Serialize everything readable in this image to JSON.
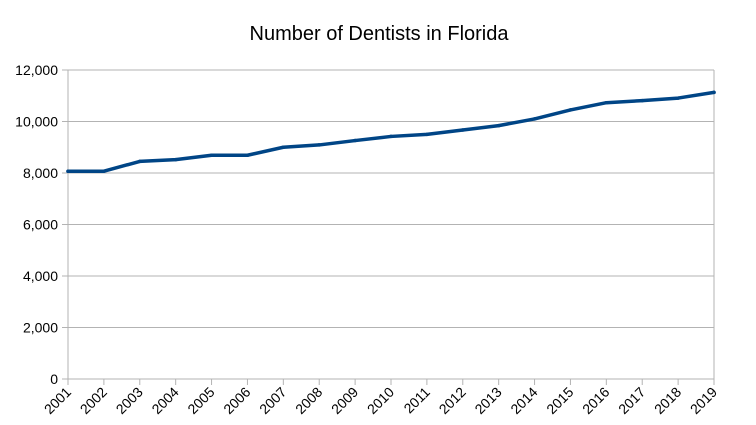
{
  "chart_data": {
    "type": "line",
    "title": "Number of Dentists in Florida",
    "xlabel": "",
    "ylabel": "",
    "categories": [
      "2001",
      "2002",
      "2003",
      "2004",
      "2005",
      "2006",
      "2007",
      "2008",
      "2009",
      "2010",
      "2011",
      "2012",
      "2013",
      "2014",
      "2015",
      "2016",
      "2017",
      "2018",
      "2019"
    ],
    "series": [
      {
        "values": [
          8070,
          8070,
          8450,
          8520,
          8690,
          8690,
          9000,
          9090,
          9260,
          9420,
          9500,
          9670,
          9840,
          10100,
          10450,
          10730,
          10810,
          10910,
          11130
        ]
      }
    ],
    "ylim": [
      0,
      12000
    ],
    "yticks": [
      0,
      2000,
      4000,
      6000,
      8000,
      10000,
      12000
    ],
    "ytick_labels": [
      "0",
      "2,000",
      "4,000",
      "6,000",
      "8,000",
      "10,000",
      "12,000"
    ],
    "grid": true,
    "legend": "none",
    "colors": {
      "line": "#004586",
      "grid": "#b3b3b3",
      "axis": "#b3b3b3"
    }
  }
}
